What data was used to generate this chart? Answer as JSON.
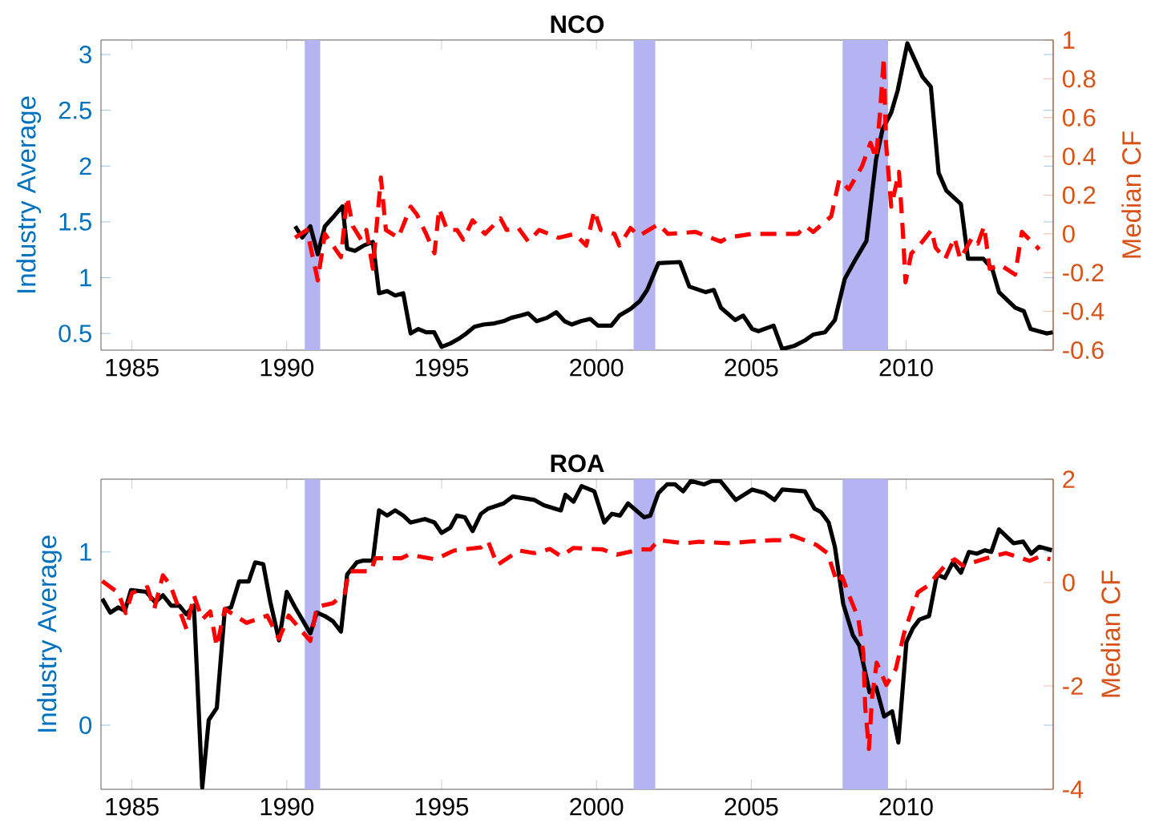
{
  "chart_data": [
    {
      "type": "line",
      "title": "NCO",
      "ylabel": "Industry Average",
      "y2label": "Median CF",
      "xlim": [
        1984,
        2014.75
      ],
      "xticks": [
        1985,
        1990,
        1995,
        2000,
        2005,
        2010
      ],
      "ylim": [
        0.35,
        3.13
      ],
      "yticks": [
        0.5,
        1,
        1.5,
        2,
        2.5,
        3
      ],
      "y2lim": [
        -0.6,
        1
      ],
      "y2ticks": [
        -0.6,
        -0.4,
        -0.2,
        0,
        0.2,
        0.4,
        0.6,
        0.8,
        1
      ],
      "bands": [
        {
          "axis": "x",
          "from": 1990.58,
          "to": 1991.08,
          "color": "#b4b4f2"
        },
        {
          "axis": "x",
          "from": 2001.2,
          "to": 2001.9,
          "color": "#b4b4f2"
        },
        {
          "axis": "x",
          "from": 2007.95,
          "to": 2009.42,
          "color": "#b4b4f2"
        }
      ],
      "series": [
        {
          "color": "#000000",
          "line_style": "solid",
          "x": [
            1990.27,
            1990.5,
            1990.76,
            1991.0,
            1991.23,
            1991.49,
            1991.8,
            1991.95,
            1992.2,
            1992.5,
            1992.78,
            1992.98,
            1993.24,
            1993.5,
            1993.76,
            1994.0,
            1994.25,
            1994.5,
            1994.76,
            1995.0,
            1995.28,
            1995.54,
            1995.8,
            1996.06,
            1996.35,
            1996.7,
            1997.0,
            1997.25,
            1997.55,
            1997.8,
            1998.07,
            1998.4,
            1998.7,
            1998.97,
            1999.2,
            1999.5,
            1999.8,
            2000.05,
            2000.48,
            2000.74,
            2001.1,
            2001.4,
            2001.64,
            2002.0,
            2002.7,
            2003.0,
            2003.53,
            2003.79,
            2004.02,
            2004.48,
            2004.74,
            2005.03,
            2005.23,
            2005.72,
            2006.0,
            2006.4,
            2006.75,
            2007.0,
            2007.38,
            2007.7,
            2008.02,
            2008.38,
            2008.72,
            2009.03,
            2009.24,
            2009.52,
            2009.73,
            2010.04,
            2010.53,
            2010.8,
            2011.05,
            2011.3,
            2011.77,
            2012.0,
            2012.49,
            2012.78,
            2013.0,
            2013.53,
            2013.8,
            2014.02,
            2014.53,
            2014.74
          ],
          "values": [
            1.46,
            1.36,
            1.46,
            1.21,
            1.46,
            1.54,
            1.64,
            1.26,
            1.24,
            1.29,
            1.32,
            0.86,
            0.88,
            0.84,
            0.86,
            0.5,
            0.54,
            0.51,
            0.51,
            0.38,
            0.41,
            0.45,
            0.5,
            0.56,
            0.58,
            0.59,
            0.61,
            0.64,
            0.66,
            0.68,
            0.61,
            0.64,
            0.69,
            0.61,
            0.58,
            0.61,
            0.63,
            0.57,
            0.57,
            0.66,
            0.72,
            0.79,
            0.89,
            1.13,
            1.14,
            0.92,
            0.87,
            0.89,
            0.73,
            0.62,
            0.66,
            0.54,
            0.52,
            0.57,
            0.36,
            0.39,
            0.44,
            0.49,
            0.51,
            0.62,
            0.99,
            1.17,
            1.33,
            2.06,
            2.33,
            2.48,
            2.68,
            3.1,
            2.8,
            2.71,
            1.94,
            1.78,
            1.66,
            1.17,
            1.17,
            1.08,
            0.87,
            0.73,
            0.7,
            0.54,
            0.5,
            0.51
          ]
        },
        {
          "color": "#ff0000",
          "line_style": "dashed",
          "axis": "y2",
          "x": [
            1990.27,
            1990.65,
            1991.0,
            1991.23,
            1991.75,
            1991.95,
            1992.13,
            1992.4,
            1992.57,
            1992.78,
            1993.04,
            1993.2,
            1993.6,
            1994.0,
            1994.2,
            1994.5,
            1994.77,
            1994.92,
            1995.18,
            1995.5,
            1995.7,
            1996.0,
            1996.4,
            1996.9,
            1997.1,
            1997.48,
            1997.8,
            1998.15,
            1998.77,
            1999.3,
            1999.67,
            1999.93,
            2000.14,
            2000.58,
            2000.74,
            2001.1,
            2001.38,
            2002.0,
            2002.31,
            2003.2,
            2003.53,
            2004.02,
            2004.22,
            2005.03,
            2005.62,
            2006.5,
            2006.76,
            2007.0,
            2007.58,
            2007.84,
            2008.15,
            2008.58,
            2008.85,
            2009.03,
            2009.15,
            2009.28,
            2009.35,
            2009.52,
            2009.77,
            2009.9,
            2009.98,
            2010.17,
            2010.43,
            2010.82,
            2010.95,
            2011.26,
            2011.56,
            2011.75,
            2012.13,
            2012.32,
            2012.52,
            2012.7,
            2013.04,
            2013.52,
            2013.74,
            2014.3
          ],
          "values": [
            -0.02,
            0.02,
            -0.24,
            0.0,
            -0.12,
            0.19,
            0.04,
            -0.03,
            0.02,
            -0.18,
            0.29,
            0.02,
            -0.02,
            0.14,
            0.1,
            0.0,
            -0.1,
            0.13,
            0.02,
            0.02,
            -0.03,
            0.07,
            0.0,
            0.08,
            0.02,
            0.03,
            -0.04,
            0.02,
            -0.02,
            0.0,
            -0.06,
            0.12,
            0.02,
            0.0,
            -0.06,
            0.03,
            -0.01,
            0.05,
            0.0,
            0.01,
            -0.01,
            -0.04,
            -0.02,
            0.0,
            0.0,
            0.0,
            0.04,
            0.01,
            0.09,
            0.28,
            0.23,
            0.35,
            0.47,
            0.39,
            0.61,
            0.91,
            0.47,
            0.14,
            0.32,
            0.0,
            -0.25,
            -0.1,
            -0.06,
            0.02,
            -0.07,
            -0.13,
            -0.02,
            -0.13,
            -0.02,
            -0.05,
            0.04,
            -0.18,
            -0.16,
            -0.21,
            0.01,
            -0.08
          ]
        }
      ]
    },
    {
      "type": "line",
      "title": "ROA",
      "ylabel": "Industry Average",
      "y2label": "Median CF",
      "xlim": [
        1984,
        2014.75
      ],
      "xticks": [
        1985,
        1990,
        1995,
        2000,
        2005,
        2010
      ],
      "ylim": [
        -0.37,
        1.42
      ],
      "yticks": [
        0,
        1
      ],
      "y2lim": [
        -4,
        2
      ],
      "y2ticks": [
        -4,
        -2,
        0,
        2
      ],
      "bands": [
        {
          "axis": "x",
          "from": 1990.58,
          "to": 1991.08,
          "color": "#b4b4f2"
        },
        {
          "axis": "x",
          "from": 2001.2,
          "to": 2001.9,
          "color": "#b4b4f2"
        },
        {
          "axis": "x",
          "from": 2007.95,
          "to": 2009.42,
          "color": "#b4b4f2"
        }
      ],
      "series": [
        {
          "color": "#000000",
          "line_style": "solid",
          "x": [
            1984.04,
            1984.3,
            1984.56,
            1984.77,
            1984.97,
            1985.46,
            1985.75,
            1986.0,
            1986.27,
            1986.53,
            1986.76,
            1987.0,
            1987.27,
            1987.48,
            1987.74,
            1988.0,
            1988.2,
            1988.46,
            1988.77,
            1988.98,
            1989.24,
            1989.47,
            1989.75,
            1990.0,
            1990.27,
            1990.76,
            1990.97,
            1991.23,
            1991.49,
            1991.75,
            1991.95,
            1992.26,
            1992.47,
            1992.78,
            1992.98,
            1993.24,
            1993.5,
            1993.76,
            1994.0,
            1994.46,
            1994.77,
            1995.0,
            1995.28,
            1995.49,
            1995.75,
            1996.0,
            1996.27,
            1996.5,
            1997.0,
            1997.3,
            1998.0,
            1998.3,
            1998.85,
            1999.0,
            1999.26,
            1999.52,
            1999.93,
            2000.25,
            2000.5,
            2000.76,
            2001.02,
            2001.54,
            2001.74,
            2002.0,
            2002.28,
            2002.54,
            2002.8,
            2003.05,
            2003.48,
            2003.74,
            2004.0,
            2004.5,
            2005.03,
            2005.44,
            2005.75,
            2006.0,
            2006.73,
            2007.04,
            2007.25,
            2007.5,
            2007.7,
            2007.97,
            2008.28,
            2008.49,
            2008.82,
            2009.03,
            2009.29,
            2009.55,
            2009.75,
            2010.01,
            2010.22,
            2010.43,
            2010.74,
            2011.0,
            2011.25,
            2011.51,
            2011.77,
            2012.03,
            2012.29,
            2012.55,
            2012.75,
            2013.0,
            2013.47,
            2013.78,
            2014.04,
            2014.3,
            2014.71
          ],
          "values": [
            0.73,
            0.65,
            0.68,
            0.66,
            0.78,
            0.77,
            0.71,
            0.75,
            0.69,
            0.69,
            0.64,
            0.69,
            -0.36,
            0.03,
            0.1,
            0.67,
            0.68,
            0.83,
            0.83,
            0.94,
            0.93,
            0.71,
            0.49,
            0.77,
            0.68,
            0.53,
            0.65,
            0.63,
            0.6,
            0.54,
            0.87,
            0.94,
            0.95,
            0.95,
            1.24,
            1.21,
            1.24,
            1.21,
            1.17,
            1.19,
            1.17,
            1.11,
            1.14,
            1.21,
            1.2,
            1.12,
            1.22,
            1.25,
            1.28,
            1.32,
            1.3,
            1.27,
            1.24,
            1.33,
            1.29,
            1.38,
            1.35,
            1.17,
            1.22,
            1.21,
            1.28,
            1.2,
            1.21,
            1.34,
            1.39,
            1.39,
            1.35,
            1.41,
            1.39,
            1.41,
            1.41,
            1.3,
            1.36,
            1.34,
            1.3,
            1.36,
            1.35,
            1.25,
            1.23,
            1.17,
            1.03,
            0.7,
            0.52,
            0.46,
            0.19,
            0.22,
            0.05,
            0.08,
            -0.1,
            0.48,
            0.56,
            0.61,
            0.63,
            0.87,
            0.85,
            0.94,
            0.88,
            1.0,
            0.99,
            1.01,
            1.0,
            1.13,
            1.05,
            1.06,
            0.99,
            1.03,
            1.01
          ]
        },
        {
          "color": "#ff0000",
          "line_style": "dashed",
          "axis": "y2",
          "x": [
            1984.04,
            1984.56,
            1984.8,
            1985.0,
            1985.5,
            1985.72,
            1986.0,
            1986.24,
            1986.76,
            1987.0,
            1987.27,
            1987.53,
            1987.74,
            1988.0,
            1988.7,
            1989.37,
            1989.75,
            1990.06,
            1990.76,
            1990.97,
            1991.49,
            1991.88,
            1992.0,
            1992.72,
            1992.86,
            1993.7,
            1993.94,
            1994.8,
            1995.4,
            1996.27,
            1996.5,
            1996.8,
            1997.5,
            1998.0,
            1998.5,
            1998.85,
            1999.26,
            2000.2,
            2000.66,
            2001.43,
            2001.74,
            2002.0,
            2002.85,
            2003.32,
            2004.25,
            2004.87,
            2005.7,
            2006.0,
            2006.32,
            2007.1,
            2007.46,
            2007.77,
            2007.93,
            2008.2,
            2008.45,
            2008.62,
            2008.68,
            2008.8,
            2008.9,
            2009.05,
            2009.36,
            2009.67,
            2009.93,
            2010.07,
            2010.38,
            2010.7,
            2011.26,
            2011.57,
            2011.83,
            2012.65,
            2013.22,
            2013.99,
            2014.3,
            2014.66
          ],
          "values": [
            0.03,
            -0.2,
            -0.59,
            -0.2,
            -0.09,
            -0.51,
            0.14,
            -0.05,
            -0.9,
            -0.25,
            -0.71,
            -0.56,
            -1.24,
            -0.51,
            -0.78,
            -0.64,
            -1.09,
            -0.64,
            -1.13,
            -0.47,
            -0.4,
            -0.2,
            0.22,
            0.22,
            0.47,
            0.47,
            0.54,
            0.45,
            0.62,
            0.68,
            0.8,
            0.34,
            0.62,
            0.57,
            0.65,
            0.51,
            0.67,
            0.64,
            0.54,
            0.64,
            0.64,
            0.82,
            0.76,
            0.79,
            0.76,
            0.79,
            0.82,
            0.82,
            0.91,
            0.73,
            0.57,
            0.0,
            0.12,
            -0.31,
            -0.68,
            -1.36,
            -2.42,
            -3.22,
            -2.23,
            -1.55,
            -1.98,
            -1.67,
            -0.99,
            -0.74,
            -0.19,
            -0.06,
            0.33,
            0.45,
            0.33,
            0.48,
            0.57,
            0.42,
            0.5,
            0.45
          ]
        }
      ]
    }
  ]
}
